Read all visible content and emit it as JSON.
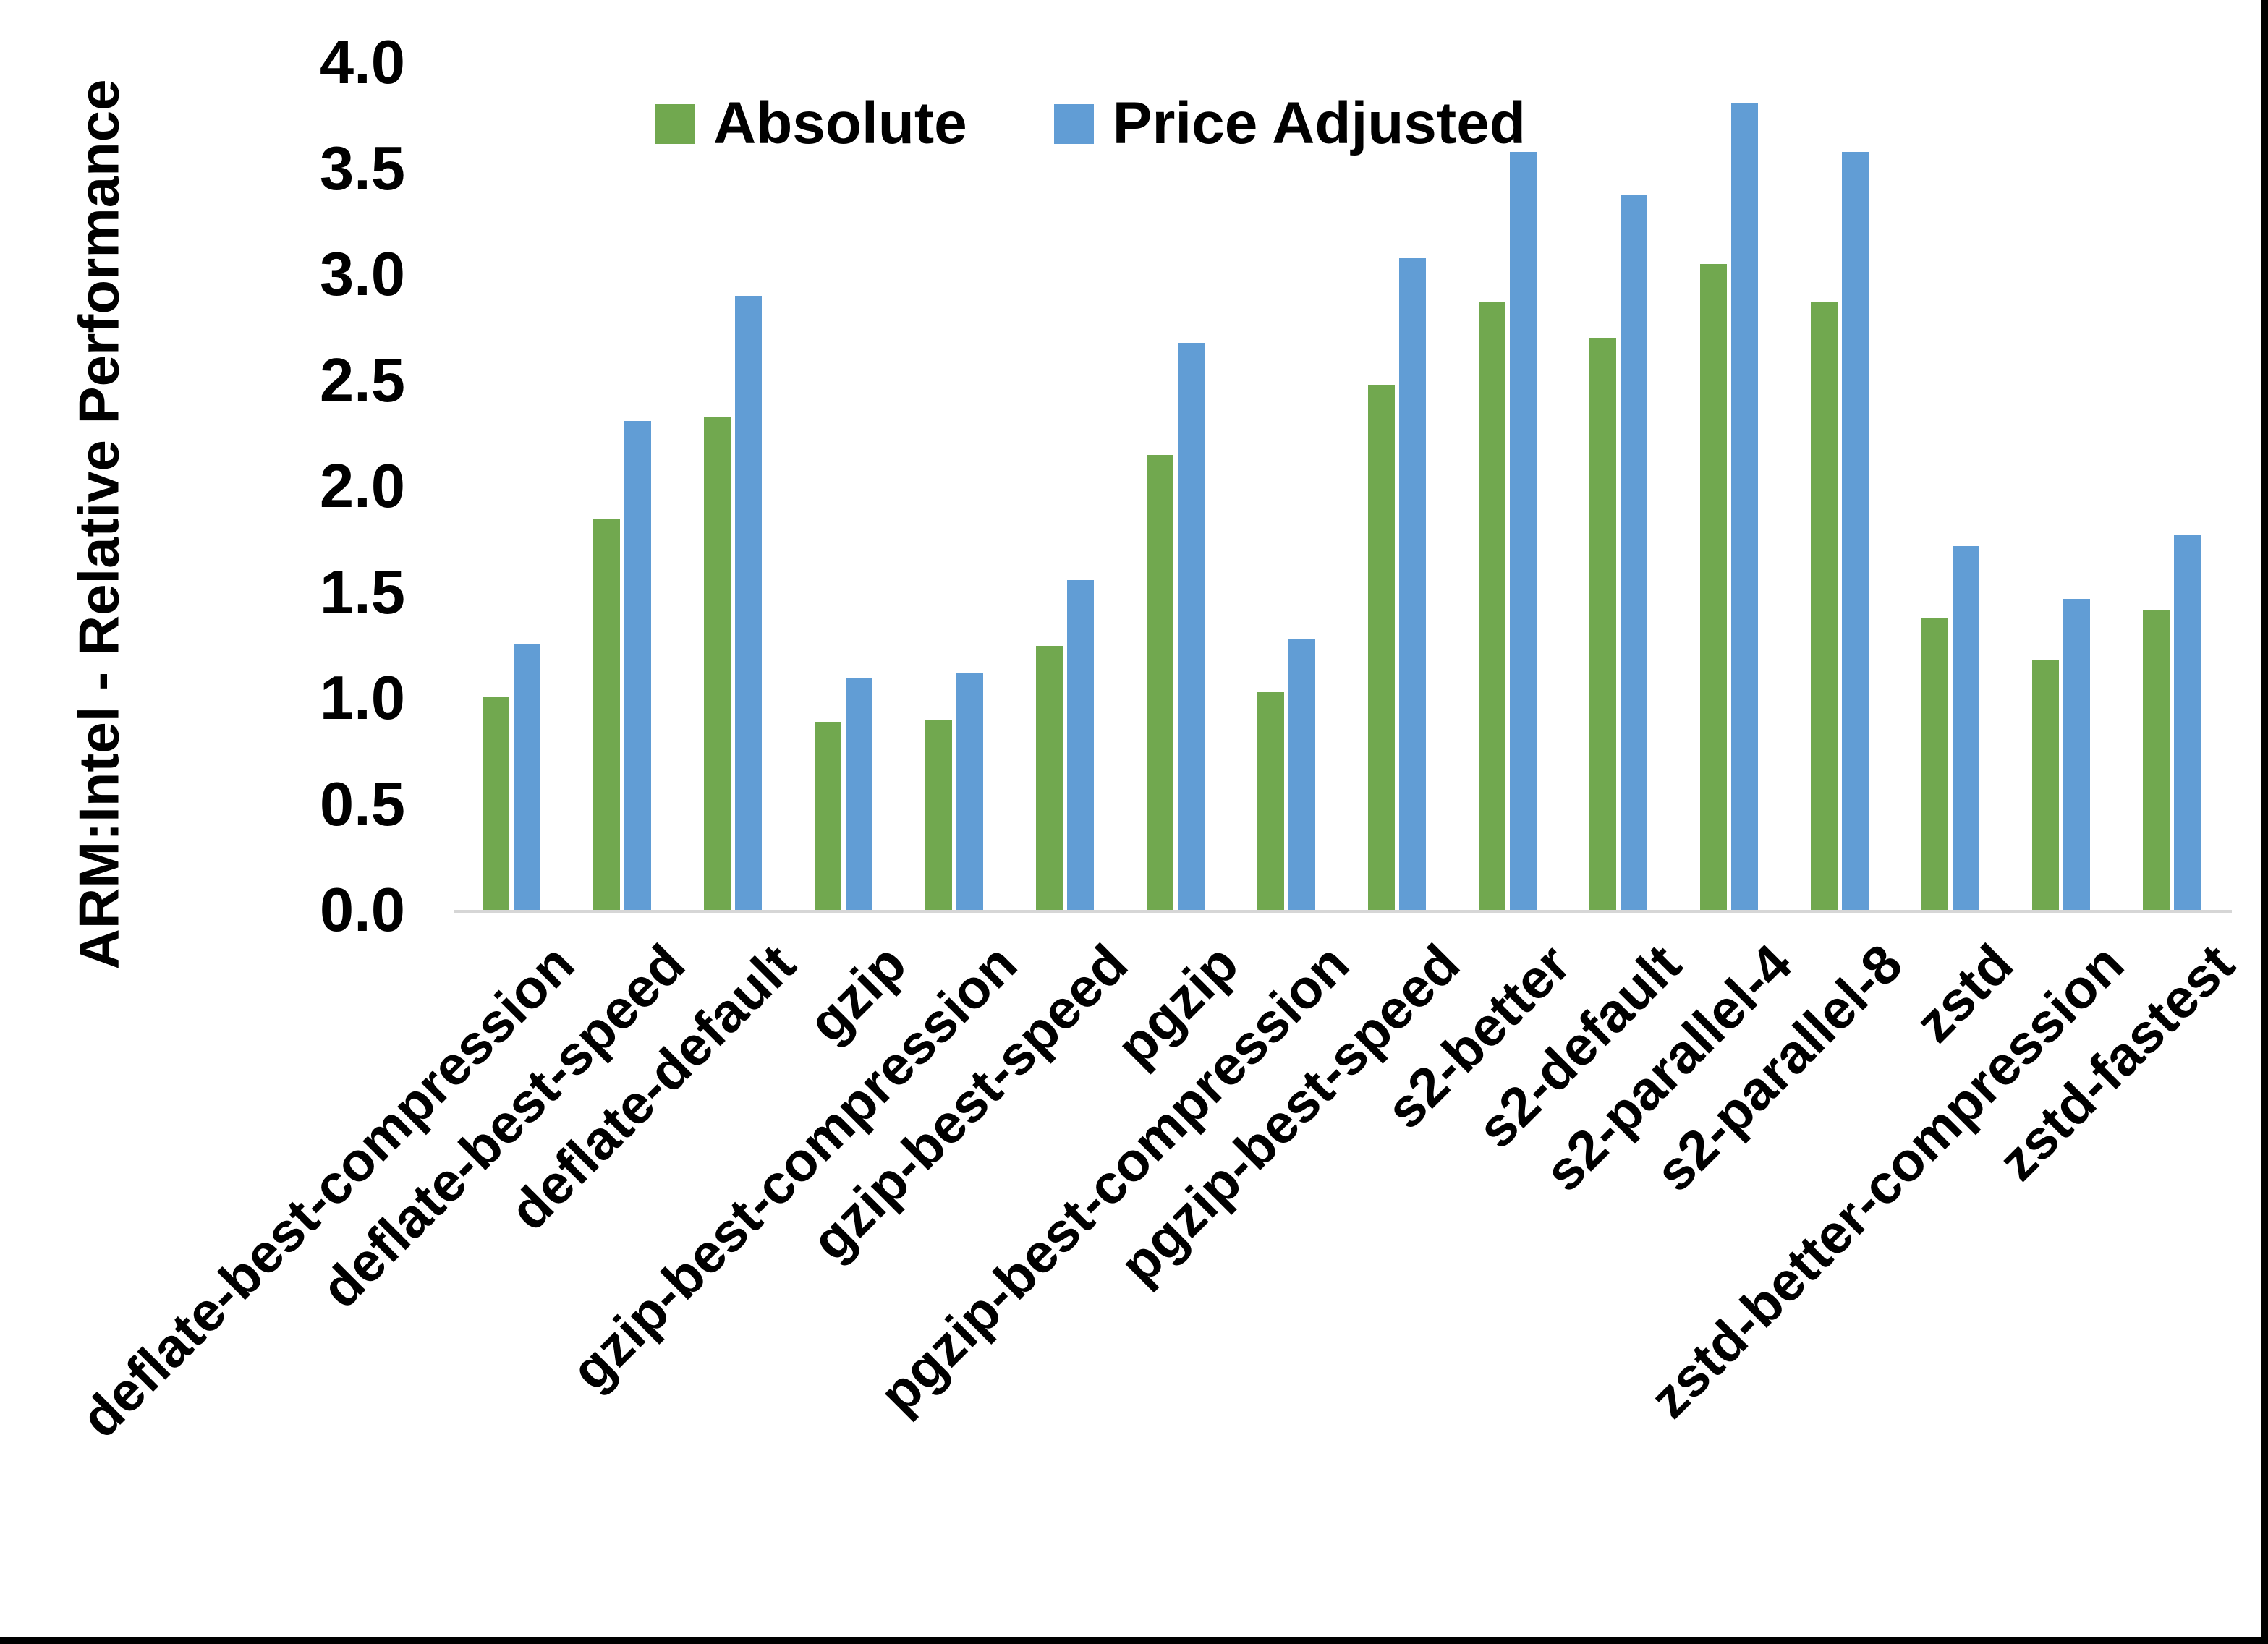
{
  "figure": {
    "background_color": "#ffffff",
    "frame_border_color": "#000000"
  },
  "chart_data": {
    "type": "bar",
    "title": "",
    "xlabel": "",
    "ylabel": "ARM:Intel - Relative Performance",
    "ylim": [
      0.0,
      4.0
    ],
    "ytick_step": 0.5,
    "ytick_labels": [
      "4.0",
      "3.5",
      "3.0",
      "2.5",
      "2.0",
      "1.5",
      "1.0",
      "0.5",
      "0.0"
    ],
    "grid": false,
    "legend_position": "top-center",
    "axis_line_color": "#d6d6d6",
    "categories": [
      "deflate-best-compression",
      "deflate-best-speed",
      "deflate-default",
      "gzip",
      "gzip-best-compression",
      "gzip-best-speed",
      "pgzip",
      "pgzip-best-compression",
      "pgzip-best-speed",
      "s2-better",
      "s2-default",
      "s2-parallel-4",
      "s2-parallel-8",
      "zstd",
      "zstd-better-compression",
      "zstd-fastest"
    ],
    "series": [
      {
        "name": "Absolute",
        "color": "#71a84f",
        "values": [
          1.01,
          1.85,
          2.33,
          0.89,
          0.9,
          1.25,
          2.15,
          1.03,
          2.48,
          2.87,
          2.7,
          3.05,
          2.87,
          1.38,
          1.18,
          1.42
        ]
      },
      {
        "name": "Price Adjusted",
        "color": "#619dd5",
        "values": [
          1.26,
          2.31,
          2.9,
          1.1,
          1.12,
          1.56,
          2.68,
          1.28,
          3.08,
          3.58,
          3.38,
          3.81,
          3.58,
          1.72,
          1.47,
          1.77
        ]
      }
    ]
  }
}
